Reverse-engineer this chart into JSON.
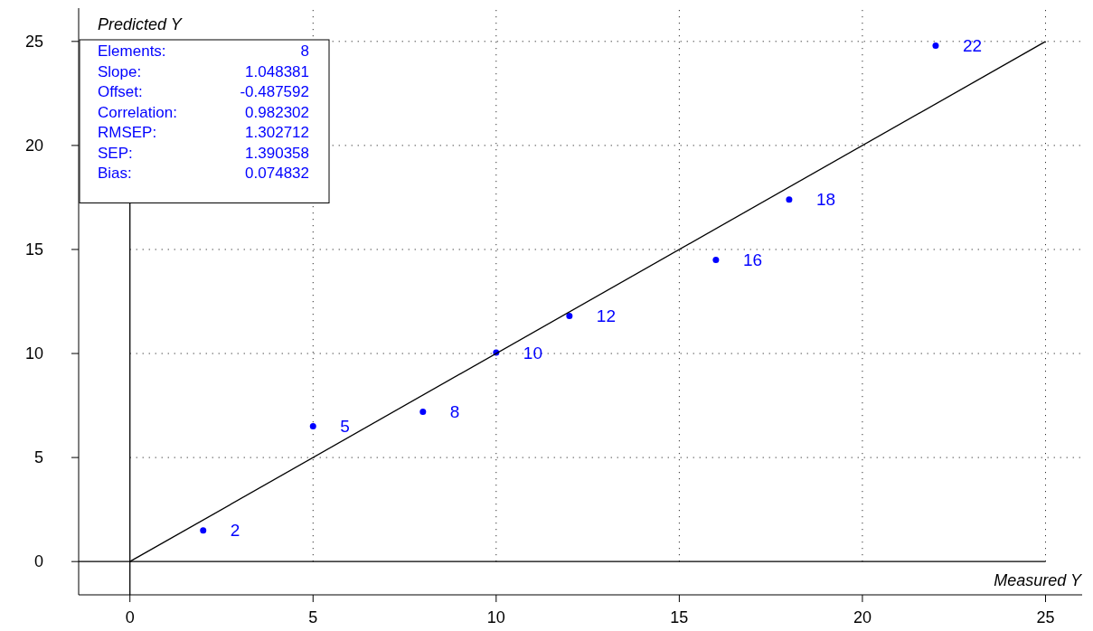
{
  "chart_data": {
    "type": "scatter",
    "xlabel": "Measured Y",
    "ylabel": "Predicted Y",
    "xlim": [
      -1.4,
      26
    ],
    "ylim": [
      -1.6,
      26.6
    ],
    "xticks": [
      0,
      5,
      10,
      15,
      20,
      25
    ],
    "yticks": [
      0,
      5,
      10,
      15,
      20,
      25
    ],
    "grid": true,
    "marker": "circle",
    "series": [
      {
        "type": "scatter",
        "color": "#0000ff",
        "x": [
          2,
          5,
          8,
          10,
          12,
          16,
          18,
          22
        ],
        "values": [
          1.5,
          6.5,
          7.2,
          10.05,
          11.8,
          14.5,
          17.4,
          24.8
        ]
      },
      {
        "type": "line",
        "color": "#000000",
        "x": [
          0,
          25
        ],
        "values": [
          0,
          25
        ],
        "marker": "none"
      }
    ],
    "annotations": [
      {
        "text": "2",
        "x": 2,
        "y": 1.5
      },
      {
        "text": "5",
        "x": 5,
        "y": 6.5
      },
      {
        "text": "8",
        "x": 8,
        "y": 7.2
      },
      {
        "text": "10",
        "x": 10,
        "y": 10.05
      },
      {
        "text": "12",
        "x": 12,
        "y": 11.8
      },
      {
        "text": "16",
        "x": 16,
        "y": 14.5
      },
      {
        "text": "18",
        "x": 18,
        "y": 17.4
      },
      {
        "text": "22",
        "x": 22,
        "y": 24.8
      },
      "Elements:",
      "8",
      "Slope:",
      "1.048381",
      "Offset:",
      "-0.487592",
      "Correlation:",
      "0.982302",
      "RMSEP:",
      "1.302712",
      "SEP:",
      "1.390358",
      "Bias:",
      "0.074832"
    ]
  }
}
